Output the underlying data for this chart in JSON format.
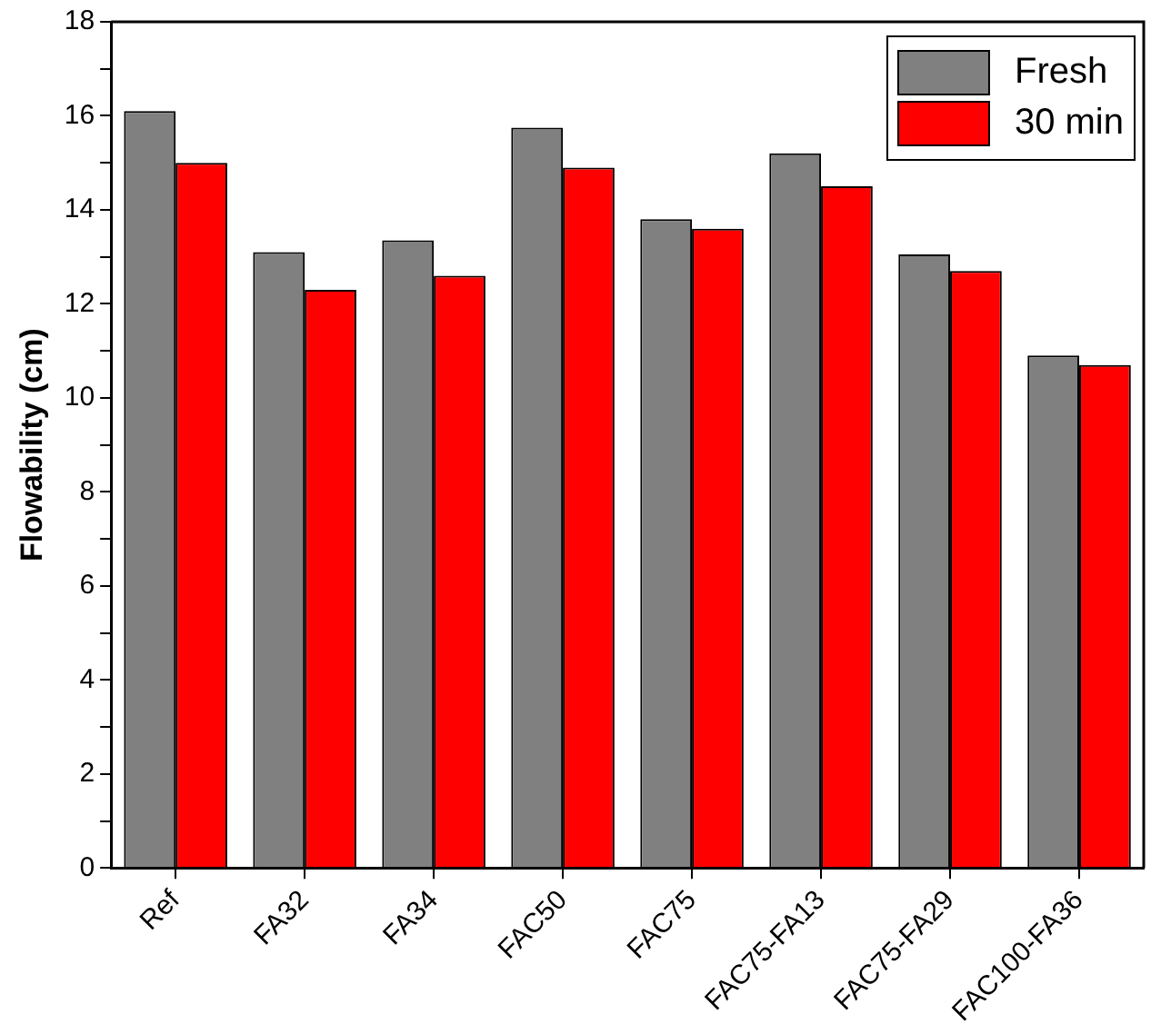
{
  "chart_data": {
    "type": "bar",
    "ylabel": "Flowability (cm)",
    "categories": [
      "Ref",
      "FA32",
      "FA34",
      "FAC50",
      "FAC75",
      "FAC75-FA13",
      "FAC75-FA29",
      "FAC100-FA36"
    ],
    "series": [
      {
        "name": "Fresh",
        "color": "#808080",
        "values": [
          16.1,
          13.1,
          13.35,
          15.75,
          13.8,
          15.2,
          13.05,
          10.9
        ]
      },
      {
        "name": "30 min",
        "color": "#ff0000",
        "values": [
          15.0,
          12.3,
          12.6,
          14.9,
          13.6,
          14.5,
          12.7,
          10.7
        ]
      }
    ],
    "ylim": [
      0,
      18
    ],
    "yticks": [
      0,
      {
        "value": 1,
        "label": null
      },
      2,
      {
        "value": 3,
        "label": null
      },
      4,
      {
        "value": 5,
        "label": null
      },
      6,
      {
        "value": 7,
        "label": null
      },
      8,
      {
        "value": 9,
        "label": null
      },
      10,
      {
        "value": 11,
        "label": null
      },
      12,
      {
        "value": 13,
        "label": null
      },
      14,
      {
        "value": 15,
        "label": null
      },
      16,
      {
        "value": 17,
        "label": null
      },
      18
    ],
    "grid": false,
    "legend": "top right"
  }
}
